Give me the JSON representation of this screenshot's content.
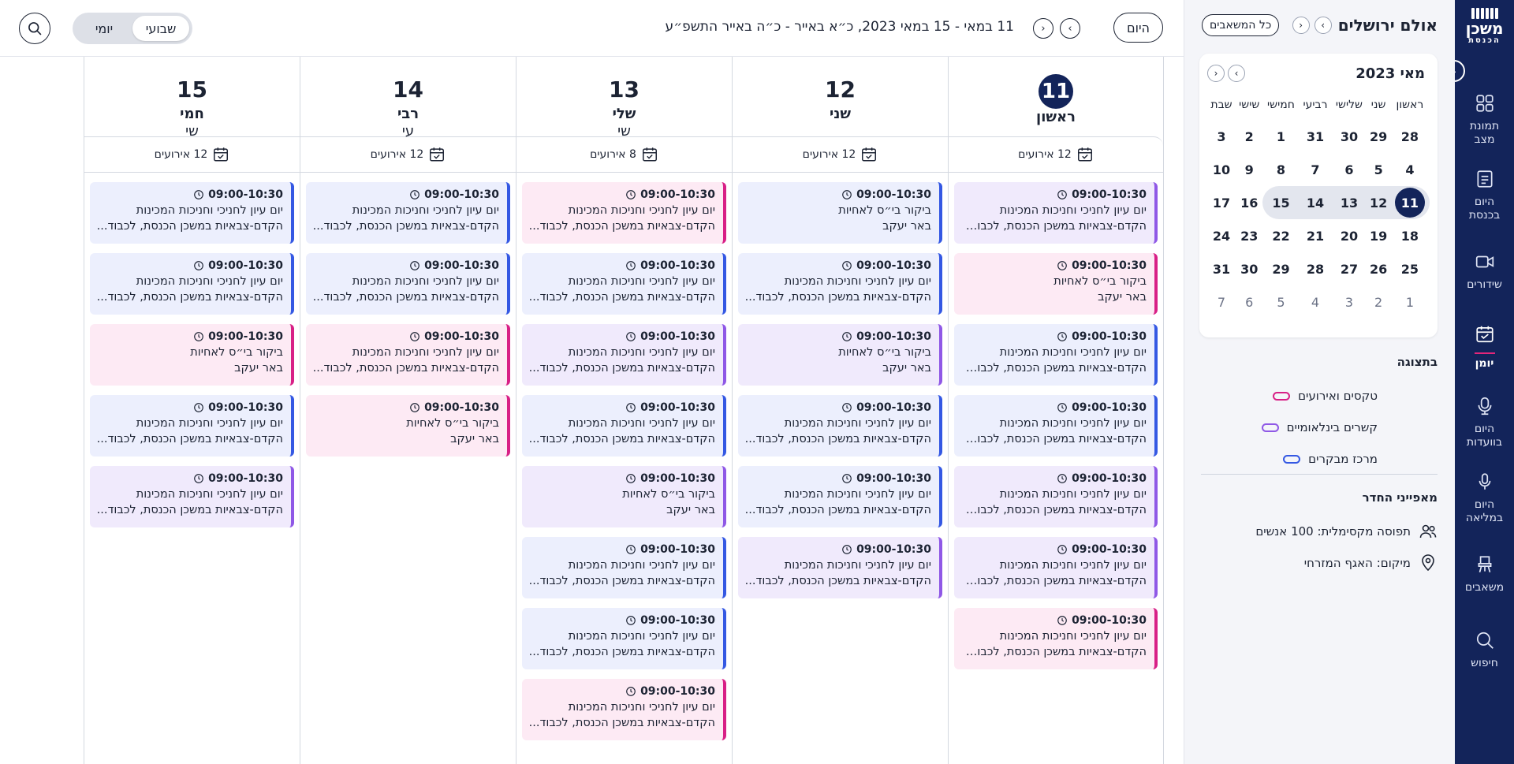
{
  "nav": {
    "logo_line1": "משכן",
    "logo_line2": "הכנסת",
    "toggle_arrow": "‹",
    "items": [
      {
        "label1": "תמונת",
        "label2": "מצב",
        "icon": "grid-icon",
        "active": false
      },
      {
        "label1": "היום",
        "label2": "בכנסת",
        "icon": "clipboard-icon",
        "active": false
      },
      {
        "label1": "שידורים",
        "label2": "",
        "icon": "video-icon",
        "active": false
      },
      {
        "label1": "יומן",
        "label2": "",
        "icon": "calendar-icon",
        "active": true
      },
      {
        "label1": "היום",
        "label2": "בוועדות",
        "icon": "microphone-icon",
        "active": false
      },
      {
        "label1": "היום",
        "label2": "במליאה",
        "icon": "mic-icon",
        "active": false
      },
      {
        "label1": "משאבים",
        "label2": "",
        "icon": "chair-icon",
        "active": false
      },
      {
        "label1": "חיפוש",
        "label2": "",
        "icon": "search-icon",
        "active": false
      }
    ]
  },
  "side": {
    "room_title": "אולם ירושלים",
    "prev_arrow": "›",
    "next_arrow": "‹",
    "all_resources": "כל המשאבים",
    "mini_cal": {
      "month": "מאי 2023",
      "weekdays": [
        "ראשון",
        "שני",
        "שלישי",
        "רביעי",
        "חמישי",
        "שישי",
        "שבת"
      ],
      "weeks": [
        [
          {
            "d": "28",
            "m": false
          },
          {
            "d": "29",
            "m": false
          },
          {
            "d": "30",
            "m": false
          },
          {
            "d": "31",
            "m": false
          },
          {
            "d": "1",
            "m": false
          },
          {
            "d": "2",
            "m": false
          },
          {
            "d": "3",
            "m": false
          }
        ],
        [
          {
            "d": "4",
            "m": false
          },
          {
            "d": "5",
            "m": false
          },
          {
            "d": "6",
            "m": false
          },
          {
            "d": "7",
            "m": false
          },
          {
            "d": "8",
            "m": false
          },
          {
            "d": "9",
            "m": false
          },
          {
            "d": "10",
            "m": false
          }
        ],
        [
          {
            "d": "11",
            "m": false,
            "sel": true,
            "wk": true
          },
          {
            "d": "12",
            "m": false,
            "wk": true
          },
          {
            "d": "13",
            "m": false,
            "wk": true
          },
          {
            "d": "14",
            "m": false,
            "wk": true
          },
          {
            "d": "15",
            "m": false,
            "wk": true
          },
          {
            "d": "16",
            "m": false
          },
          {
            "d": "17",
            "m": false
          }
        ],
        [
          {
            "d": "18",
            "m": false
          },
          {
            "d": "19",
            "m": false
          },
          {
            "d": "20",
            "m": false
          },
          {
            "d": "21",
            "m": false
          },
          {
            "d": "22",
            "m": false
          },
          {
            "d": "23",
            "m": false
          },
          {
            "d": "24",
            "m": false
          }
        ],
        [
          {
            "d": "25",
            "m": false
          },
          {
            "d": "26",
            "m": false
          },
          {
            "d": "27",
            "m": false
          },
          {
            "d": "28",
            "m": false
          },
          {
            "d": "29",
            "m": false
          },
          {
            "d": "30",
            "m": false
          },
          {
            "d": "31",
            "m": false
          }
        ],
        [
          {
            "d": "1",
            "m": true
          },
          {
            "d": "2",
            "m": true
          },
          {
            "d": "3",
            "m": true
          },
          {
            "d": "4",
            "m": true
          },
          {
            "d": "5",
            "m": true
          },
          {
            "d": "6",
            "m": true
          },
          {
            "d": "7",
            "m": true
          }
        ]
      ]
    },
    "display_title": "בתצוגה",
    "legend": [
      {
        "label": "טקסים ואירועים",
        "color": "#d81f86"
      },
      {
        "label": "קשרים בינלאומיים",
        "color": "#8f58e6"
      },
      {
        "label": "מרכז מבקרים",
        "color": "#3458e3"
      }
    ],
    "props_title": "מאפייני החדר",
    "capacity": "תפוסה מקסימלית: 100 אנשים",
    "location": "מיקום: האגף המזרחי"
  },
  "topbar": {
    "today": "היום",
    "prev": "›",
    "next": "‹",
    "range": "11 במאי - 15 במאי 2023, כ״א באייר - כ״ה באייר התשפ״ע",
    "view_daily": "יומי",
    "view_weekly": "שבועי"
  },
  "colors": {
    "blue": "#3458e3",
    "purple": "#8f58e6",
    "pink": "#d81f86",
    "navy": "#13245a"
  },
  "days": [
    {
      "num": "11",
      "name": "ראשון",
      "name2": "",
      "today": true,
      "count": "12 אירועים",
      "events": [
        {
          "time": "09:00-10:30",
          "l1": "יום עיון לחניכי וחניכות המכינות",
          "l2": "הקדם-צבאיות במשכן הכנסת, לכבוד...",
          "c": "purple"
        },
        {
          "time": "09:00-10:30",
          "l1": "ביקור בי״ס לאחיות",
          "l2": "באר יעקב",
          "c": "pink"
        },
        {
          "time": "09:00-10:30",
          "l1": "יום עיון לחניכי וחניכות המכינות",
          "l2": "הקדם-צבאיות במשכן הכנסת, לכבוד...",
          "c": "blue"
        },
        {
          "time": "09:00-10:30",
          "l1": "יום עיון לחניכי וחניכות המכינות",
          "l2": "הקדם-צבאיות במשכן הכנסת, לכבוד...",
          "c": "blue"
        },
        {
          "time": "09:00-10:30",
          "l1": "יום עיון לחניכי וחניכות המכינות",
          "l2": "הקדם-צבאיות במשכן הכנסת, לכבוד...",
          "c": "purple"
        },
        {
          "time": "09:00-10:30",
          "l1": "יום עיון לחניכי וחניכות המכינות",
          "l2": "הקדם-צבאיות במשכן הכנסת, לכבוד...",
          "c": "purple"
        },
        {
          "time": "09:00-10:30",
          "l1": "יום עיון לחניכי וחניכות המכינות",
          "l2": "הקדם-צבאיות במשכן הכנסת, לכבוד...",
          "c": "pink"
        }
      ]
    },
    {
      "num": "12",
      "name": "שני",
      "name2": "",
      "today": false,
      "count": "12 אירועים",
      "events": [
        {
          "time": "09:00-10:30",
          "l1": "ביקור בי״ס לאחיות",
          "l2": "באר יעקב",
          "c": "blue"
        },
        {
          "time": "09:00-10:30",
          "l1": "יום עיון לחניכי וחניכות המכינות",
          "l2": "הקדם-צבאיות במשכן הכנסת, לכבוד...",
          "c": "blue"
        },
        {
          "time": "09:00-10:30",
          "l1": "ביקור בי״ס לאחיות",
          "l2": "באר יעקב",
          "c": "purple"
        },
        {
          "time": "09:00-10:30",
          "l1": "יום עיון לחניכי וחניכות המכינות",
          "l2": "הקדם-צבאיות במשכן הכנסת, לכבוד...",
          "c": "blue"
        },
        {
          "time": "09:00-10:30",
          "l1": "יום עיון לחניכי וחניכות המכינות",
          "l2": "הקדם-צבאיות במשכן הכנסת, לכבוד...",
          "c": "blue"
        },
        {
          "time": "09:00-10:30",
          "l1": "יום עיון לחניכי וחניכות המכינות",
          "l2": "הקדם-צבאיות במשכן הכנסת, לכבוד...",
          "c": "purple"
        }
      ]
    },
    {
      "num": "13",
      "name": "שלי",
      "name2": "שי",
      "today": false,
      "count": "8 אירועים",
      "events": [
        {
          "time": "09:00-10:30",
          "l1": "יום עיון לחניכי וחניכות המכינות",
          "l2": "הקדם-צבאיות במשכן הכנסת, לכבוד...",
          "c": "pink"
        },
        {
          "time": "09:00-10:30",
          "l1": "יום עיון לחניכי וחניכות המכינות",
          "l2": "הקדם-צבאיות במשכן הכנסת, לכבוד...",
          "c": "blue"
        },
        {
          "time": "09:00-10:30",
          "l1": "יום עיון לחניכי וחניכות המכינות",
          "l2": "הקדם-צבאיות במשכן הכנסת, לכבוד...",
          "c": "purple"
        },
        {
          "time": "09:00-10:30",
          "l1": "יום עיון לחניכי וחניכות המכינות",
          "l2": "הקדם-צבאיות במשכן הכנסת, לכבוד...",
          "c": "blue"
        },
        {
          "time": "09:00-10:30",
          "l1": "ביקור בי״ס לאחיות",
          "l2": "באר יעקב",
          "c": "purple"
        },
        {
          "time": "09:00-10:30",
          "l1": "יום עיון לחניכי וחניכות המכינות",
          "l2": "הקדם-צבאיות במשכן הכנסת, לכבוד...",
          "c": "blue"
        },
        {
          "time": "09:00-10:30",
          "l1": "יום עיון לחניכי וחניכות המכינות",
          "l2": "הקדם-צבאיות במשכן הכנסת, לכבוד...",
          "c": "blue"
        },
        {
          "time": "09:00-10:30",
          "l1": "יום עיון לחניכי וחניכות המכינות",
          "l2": "הקדם-צבאיות במשכן הכנסת, לכבוד...",
          "c": "pink"
        }
      ]
    },
    {
      "num": "14",
      "name": "רבי",
      "name2": "עי",
      "today": false,
      "count": "12 אירועים",
      "events": [
        {
          "time": "09:00-10:30",
          "l1": "יום עיון לחניכי וחניכות המכינות",
          "l2": "הקדם-צבאיות במשכן הכנסת, לכבוד...",
          "c": "blue"
        },
        {
          "time": "09:00-10:30",
          "l1": "יום עיון לחניכי וחניכות המכינות",
          "l2": "הקדם-צבאיות במשכן הכנסת, לכבוד...",
          "c": "blue"
        },
        {
          "time": "09:00-10:30",
          "l1": "יום עיון לחניכי וחניכות המכינות",
          "l2": "הקדם-צבאיות במשכן הכנסת, לכבוד...",
          "c": "pink"
        },
        {
          "time": "09:00-10:30",
          "l1": "ביקור בי״ס לאחיות",
          "l2": "באר יעקב",
          "c": "pink"
        }
      ]
    },
    {
      "num": "15",
      "name": "חמי",
      "name2": "שי",
      "today": false,
      "count": "12 אירועים",
      "events": [
        {
          "time": "09:00-10:30",
          "l1": "יום עיון לחניכי וחניכות המכינות",
          "l2": "הקדם-צבאיות במשכן הכנסת, לכבוד...",
          "c": "blue"
        },
        {
          "time": "09:00-10:30",
          "l1": "יום עיון לחניכי וחניכות המכינות",
          "l2": "הקדם-צבאיות במשכן הכנסת, לכבוד...",
          "c": "blue"
        },
        {
          "time": "09:00-10:30",
          "l1": "ביקור בי״ס לאחיות",
          "l2": "באר יעקב",
          "c": "pink"
        },
        {
          "time": "09:00-10:30",
          "l1": "יום עיון לחניכי וחניכות המכינות",
          "l2": "הקדם-צבאיות במשכן הכנסת, לכבוד...",
          "c": "blue"
        },
        {
          "time": "09:00-10:30",
          "l1": "יום עיון לחניכי וחניכות המכינות",
          "l2": "הקדם-צבאיות במשכן הכנסת, לכבוד...",
          "c": "purple"
        }
      ]
    }
  ]
}
